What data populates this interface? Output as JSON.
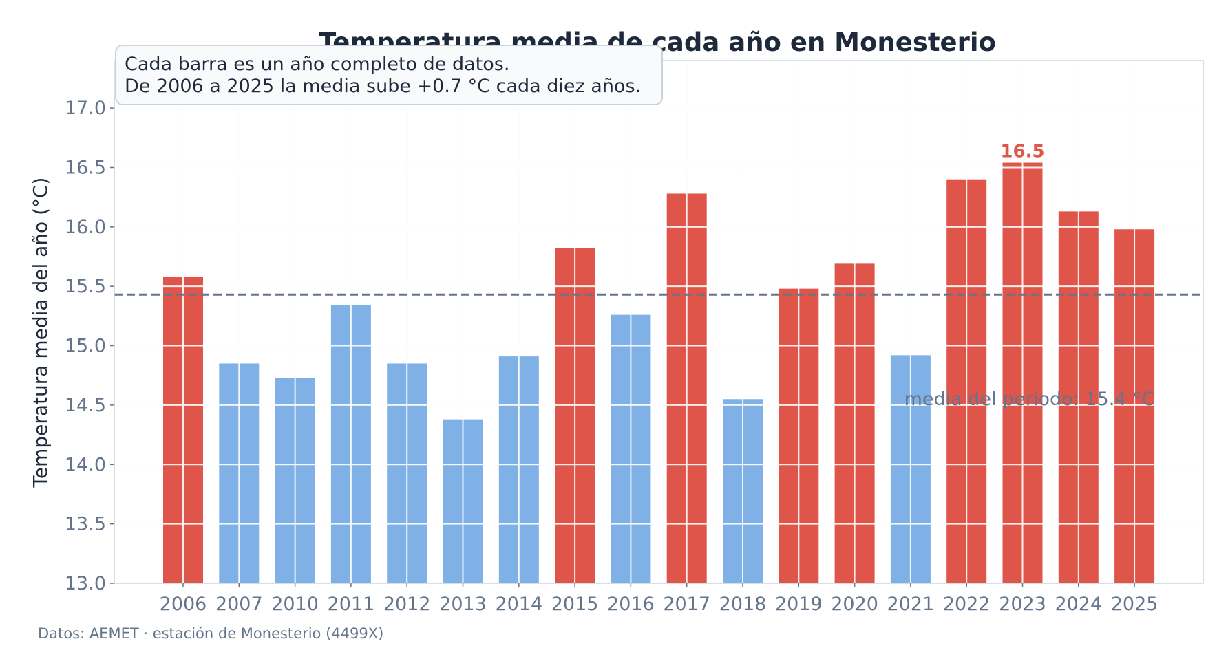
{
  "chart_data": {
    "type": "bar",
    "title": "Temperatura media de cada año en Monesterio",
    "ylabel": "Temperatura media del año (°C)",
    "xlabel": "",
    "categories": [
      "2006",
      "2007",
      "2010",
      "2011",
      "2012",
      "2013",
      "2014",
      "2015",
      "2016",
      "2017",
      "2018",
      "2019",
      "2020",
      "2021",
      "2022",
      "2023",
      "2024",
      "2025"
    ],
    "values": [
      15.58,
      14.85,
      14.73,
      15.34,
      14.85,
      14.38,
      14.91,
      15.82,
      15.26,
      16.28,
      14.55,
      15.48,
      15.69,
      14.92,
      16.4,
      16.54,
      16.13,
      15.98
    ],
    "ylim": [
      13.0,
      17.4
    ],
    "yticks": [
      "13.0",
      "13.5",
      "14.0",
      "14.5",
      "15.0",
      "15.5",
      "16.0",
      "16.5",
      "17.0"
    ],
    "grid": true,
    "mean_line": {
      "value": 15.43,
      "label": "media del periodo: 15.4 °C"
    },
    "max_annotation": {
      "category": "2023",
      "label": "16.5"
    },
    "notes": [
      "Cada barra es un año completo de datos.",
      "De 2006 a 2025 la media sube +0.7 °C cada diez años."
    ],
    "source": "Datos: AEMET · estación de Monesterio (4499X)",
    "colors": {
      "above_mean": "#e0554a",
      "below_mean": "#7fb1e6",
      "mean_line": "#64748b",
      "grid": "#eef1f5",
      "axes": "#c8d3e0",
      "max_label": "#e0554a"
    }
  }
}
